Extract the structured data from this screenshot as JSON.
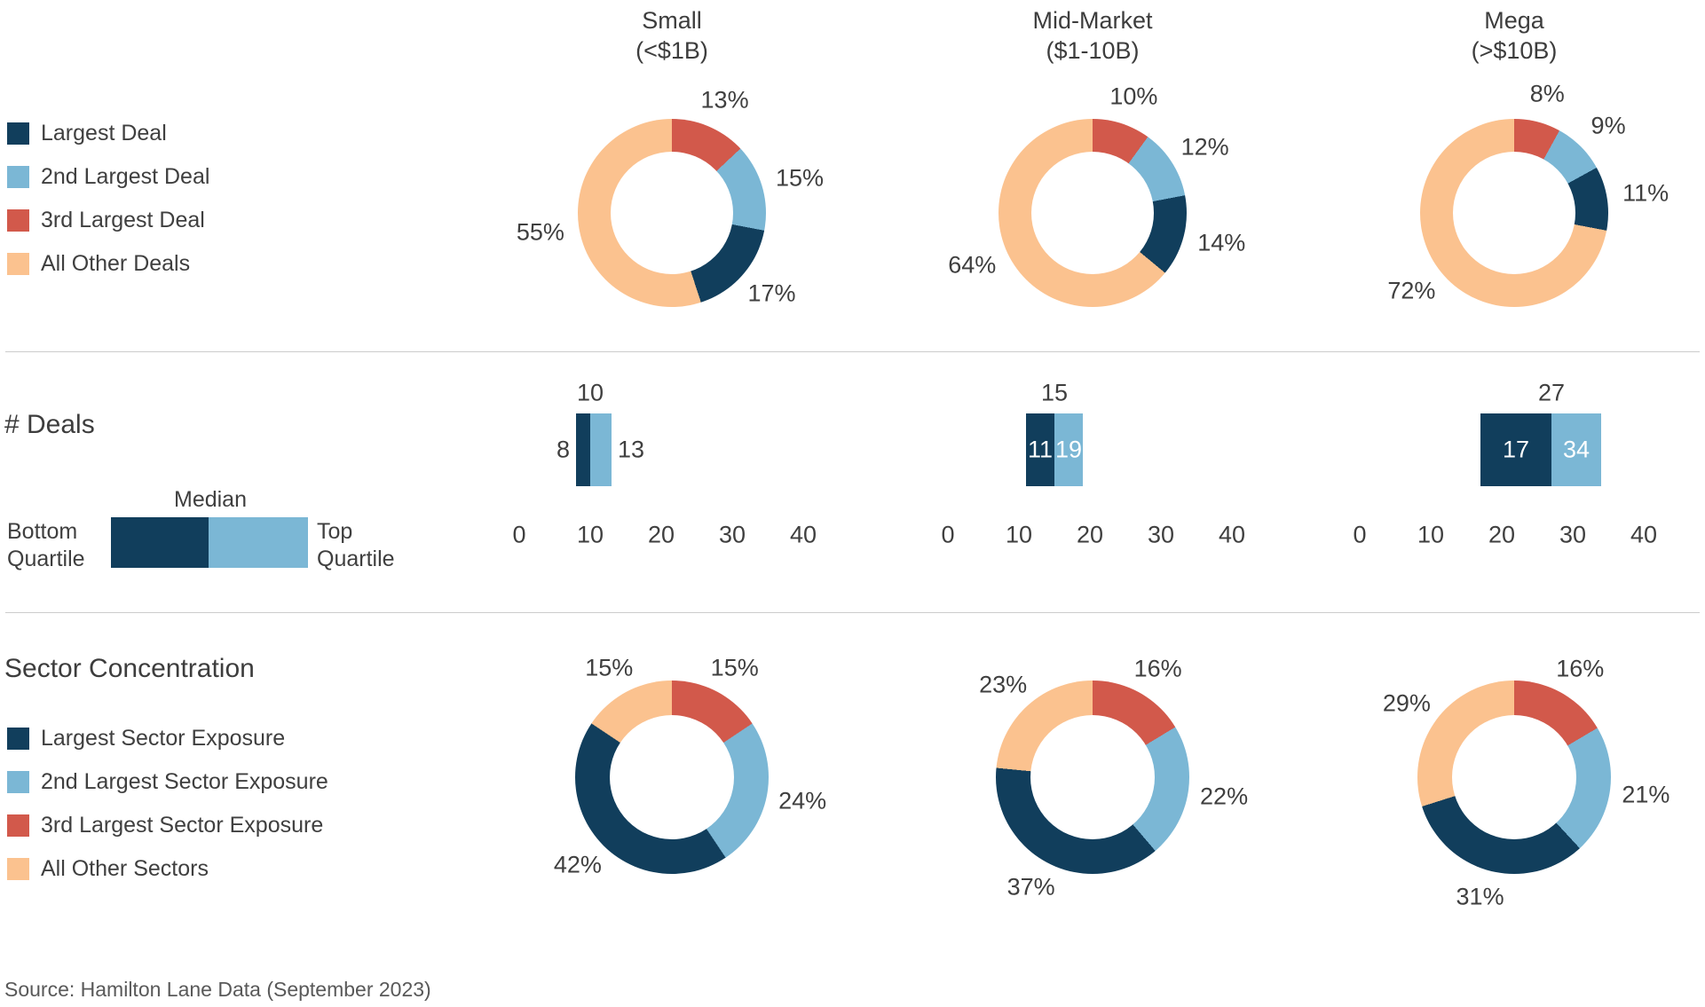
{
  "titles": {
    "columns": [
      {
        "line1": "Small",
        "line2": "(<$1B)"
      },
      {
        "line1": "Mid-Market",
        "line2": "($1-10B)"
      },
      {
        "line1": "Mega",
        "line2": "(>$10B)"
      }
    ]
  },
  "colors": {
    "navy": "#113E5C",
    "light_blue": "#7BB7D5",
    "coral": "#D2594B",
    "peach": "#FBC28F",
    "text": "#3F3F3F",
    "divider": "#CCCCCC",
    "source_text": "#595959"
  },
  "deal_concentration": {
    "legend": [
      {
        "label": "Largest Deal",
        "color": "navy"
      },
      {
        "label": "2nd Largest Deal",
        "color": "light_blue"
      },
      {
        "label": "3rd Largest Deal",
        "color": "coral"
      },
      {
        "label": "All Other Deals",
        "color": "peach"
      }
    ]
  },
  "num_deals": {
    "title": "# Deals",
    "legend": {
      "median": "Median",
      "bottom": "Bottom Quartile",
      "top": "Top Quartile"
    }
  },
  "sector_concentration": {
    "title": "Sector Concentration",
    "legend": [
      {
        "label": "Largest Sector Exposure",
        "color": "navy"
      },
      {
        "label": "2nd Largest Sector Exposure",
        "color": "light_blue"
      },
      {
        "label": "3rd Largest Sector Exposure",
        "color": "coral"
      },
      {
        "label": "All Other Sectors",
        "color": "peach"
      }
    ]
  },
  "source": "Source: Hamilton Lane Data (September 2023)",
  "chart_data": [
    {
      "type": "pie",
      "subtype": "donut-multiples",
      "section": "deal_concentration",
      "unit": "%",
      "segment_order": "clockwise from 12 o'clock",
      "donuts": [
        {
          "column": "Small (<$1B)",
          "segments": [
            {
              "label": "3rd Largest Deal",
              "pct": 13,
              "color": "coral"
            },
            {
              "label": "2nd Largest Deal",
              "pct": 15,
              "color": "light_blue"
            },
            {
              "label": "Largest Deal",
              "pct": 17,
              "color": "navy"
            },
            {
              "label": "All Other Deals",
              "pct": 55,
              "color": "peach"
            }
          ]
        },
        {
          "column": "Mid-Market ($1-10B)",
          "segments": [
            {
              "label": "3rd Largest Deal",
              "pct": 10,
              "color": "coral"
            },
            {
              "label": "2nd Largest Deal",
              "pct": 12,
              "color": "light_blue"
            },
            {
              "label": "Largest Deal",
              "pct": 14,
              "color": "navy"
            },
            {
              "label": "All Other Deals",
              "pct": 64,
              "color": "peach"
            }
          ]
        },
        {
          "column": "Mega (>$10B)",
          "segments": [
            {
              "label": "3rd Largest Deal",
              "pct": 8,
              "color": "coral"
            },
            {
              "label": "2nd Largest Deal",
              "pct": 9,
              "color": "light_blue"
            },
            {
              "label": "Largest Deal",
              "pct": 11,
              "color": "navy"
            },
            {
              "label": "All Other Deals",
              "pct": 72,
              "color": "peach"
            }
          ]
        }
      ]
    },
    {
      "type": "bar",
      "subtype": "quartile-range-horizontal",
      "section": "num_deals",
      "title": "# Deals",
      "axis": {
        "min": 0,
        "max": 40,
        "ticks": [
          0,
          10,
          20,
          30,
          40
        ]
      },
      "bars": [
        {
          "column": "Small (<$1B)",
          "bottom_quartile": 8,
          "median": 10,
          "top_quartile": 13,
          "value_label_position": "outside"
        },
        {
          "column": "Mid-Market ($1-10B)",
          "bottom_quartile": 11,
          "median": 15,
          "top_quartile": 19,
          "value_label_position": "inside"
        },
        {
          "column": "Mega (>$10B)",
          "bottom_quartile": 17,
          "median": 27,
          "top_quartile": 34,
          "value_label_position": "inside"
        }
      ]
    },
    {
      "type": "pie",
      "subtype": "donut-multiples",
      "section": "sector_concentration",
      "unit": "%",
      "segment_order": "clockwise from 12 o'clock",
      "donuts": [
        {
          "column": "Small (<$1B)",
          "segments": [
            {
              "label": "3rd Largest Sector Exposure",
              "pct": 15,
              "color": "coral"
            },
            {
              "label": "2nd Largest Sector Exposure",
              "pct": 24,
              "color": "light_blue"
            },
            {
              "label": "Largest Sector Exposure",
              "pct": 42,
              "color": "navy"
            },
            {
              "label": "All Other Sectors",
              "pct": 15,
              "color": "peach"
            }
          ]
        },
        {
          "column": "Mid-Market ($1-10B)",
          "segments": [
            {
              "label": "3rd Largest Sector Exposure",
              "pct": 16,
              "color": "coral"
            },
            {
              "label": "2nd Largest Sector Exposure",
              "pct": 22,
              "color": "light_blue"
            },
            {
              "label": "Largest Sector Exposure",
              "pct": 37,
              "color": "navy"
            },
            {
              "label": "All Other Sectors",
              "pct": 23,
              "color": "peach"
            }
          ]
        },
        {
          "column": "Mega (>$10B)",
          "segments": [
            {
              "label": "3rd Largest Sector Exposure",
              "pct": 16,
              "color": "coral"
            },
            {
              "label": "2nd Largest Sector Exposure",
              "pct": 21,
              "color": "light_blue"
            },
            {
              "label": "Largest Sector Exposure",
              "pct": 31,
              "color": "navy"
            },
            {
              "label": "All Other Sectors",
              "pct": 29,
              "color": "peach"
            }
          ]
        }
      ]
    }
  ]
}
